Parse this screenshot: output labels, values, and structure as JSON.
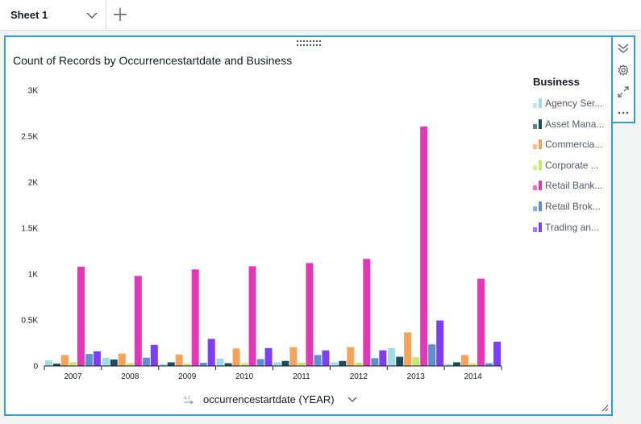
{
  "sheet": {
    "tab_label": "Sheet 1",
    "tab_icon": "chevron-down-icon",
    "add_icon": "plus-icon"
  },
  "visual": {
    "title": "Count of Records by Occurrencestartdate and Business",
    "field_well_label": "occurrencestartdate (YEAR)",
    "field_well_sort_icon": "sort-az-icon",
    "field_well_dropdown_icon": "chevron-down-icon"
  },
  "toolbar": {
    "items": [
      "collapse-icon",
      "gear-icon",
      "expand-icon",
      "more-icon"
    ]
  },
  "legend": {
    "title": "Business",
    "items": [
      {
        "label": "Agency Ser...",
        "color": "#9fdbe9"
      },
      {
        "label": "Asset Mana...",
        "color": "#1c4f5c"
      },
      {
        "label": "Commercia...",
        "color": "#f5a35a"
      },
      {
        "label": "Corporate ...",
        "color": "#c5e86d"
      },
      {
        "label": "Retail Bank...",
        "color": "#e337b8"
      },
      {
        "label": "Retail Brok...",
        "color": "#5e8ed4"
      },
      {
        "label": "Trading an...",
        "color": "#7d3ff5"
      }
    ]
  },
  "chart_data": {
    "type": "bar",
    "categories": [
      "2007",
      "2008",
      "2009",
      "2010",
      "2011",
      "2012",
      "2013",
      "2014"
    ],
    "y_tick_labels": [
      "0",
      "0.5K",
      "1K",
      "1.5K",
      "2K",
      "2.5K",
      "3K"
    ],
    "ylim": [
      0,
      3000
    ],
    "grid": false,
    "legend_position": "right",
    "series": [
      {
        "name": "Agency Ser...",
        "color": "#9fdbe9",
        "values": [
          60,
          90,
          20,
          80,
          40,
          40,
          195,
          20
        ]
      },
      {
        "name": "Asset Mana...",
        "color": "#1c4f5c",
        "values": [
          25,
          70,
          40,
          30,
          55,
          55,
          100,
          40
        ]
      },
      {
        "name": "Commercia...",
        "color": "#f5a35a",
        "values": [
          120,
          135,
          125,
          190,
          205,
          205,
          365,
          120
        ]
      },
      {
        "name": "Corporate ...",
        "color": "#c5e86d",
        "values": [
          40,
          30,
          25,
          30,
          35,
          35,
          95,
          30
        ]
      },
      {
        "name": "Retail Bank...",
        "color": "#e337b8",
        "values": [
          1080,
          980,
          1050,
          1085,
          1120,
          1165,
          2605,
          950
        ]
      },
      {
        "name": "Retail Brok...",
        "color": "#5e8ed4",
        "values": [
          130,
          90,
          35,
          75,
          120,
          85,
          235,
          30
        ]
      },
      {
        "name": "Trading an...",
        "color": "#7d3ff5",
        "values": [
          160,
          230,
          295,
          195,
          170,
          170,
          495,
          265
        ]
      }
    ]
  }
}
